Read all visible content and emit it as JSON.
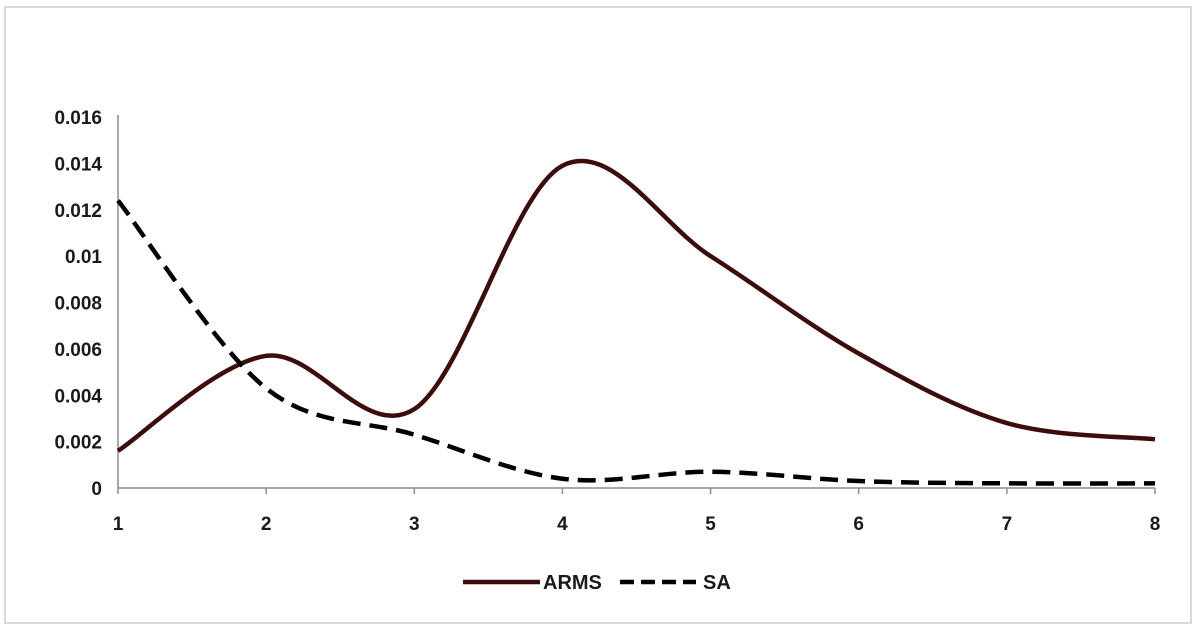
{
  "chart_data": {
    "type": "line",
    "title": "",
    "xlabel": "",
    "ylabel": "",
    "x": [
      1,
      2,
      3,
      4,
      5,
      6,
      7,
      8
    ],
    "xlim": [
      1,
      8
    ],
    "ylim": [
      0,
      0.016
    ],
    "y_ticks": [
      "0",
      "0.002",
      "0.004",
      "0.006",
      "0.008",
      "0.01",
      "0.012",
      "0.014",
      "0.016"
    ],
    "x_ticks": [
      "1",
      "2",
      "3",
      "4",
      "5",
      "6",
      "7",
      "8"
    ],
    "grid": false,
    "legend_position": "bottom",
    "smoothed": true,
    "series": [
      {
        "name": "ARMS",
        "values": [
          0.0016,
          0.0057,
          0.0034,
          0.0139,
          0.01,
          0.0058,
          0.0028,
          0.0021
        ],
        "color": "#3d0c0c",
        "style": "solid"
      },
      {
        "name": "SA",
        "values": [
          0.0124,
          0.0043,
          0.0023,
          0.0004,
          0.0007,
          0.0003,
          0.0002,
          0.0002
        ],
        "color": "#000000",
        "style": "dashed"
      }
    ]
  }
}
